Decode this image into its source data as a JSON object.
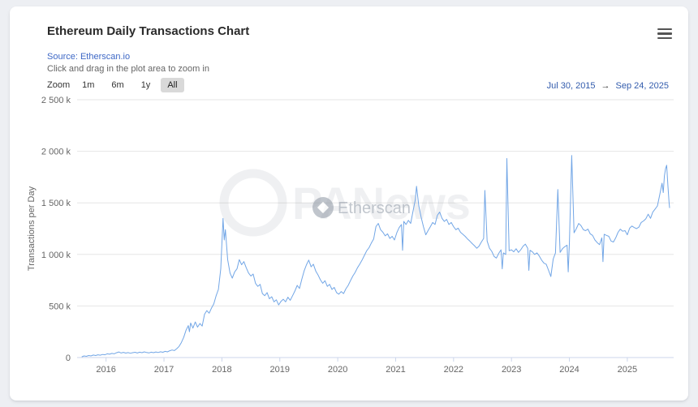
{
  "page": {
    "background": "#edeff3"
  },
  "header": {
    "title": "Ethereum Daily Transactions Chart",
    "source_label": "Source: Etherscan.io",
    "hint": "Click and drag in the plot area to zoom in"
  },
  "range_selector": {
    "zoom_label": "Zoom",
    "buttons": [
      {
        "label": "1m",
        "selected": false
      },
      {
        "label": "6m",
        "selected": false
      },
      {
        "label": "1y",
        "selected": false
      },
      {
        "label": "All",
        "selected": true
      }
    ],
    "from_date": "Jul 30, 2015",
    "to_date": "Sep 24, 2025",
    "arrow": "→",
    "selected_bg": "#d9d9d9",
    "date_color": "#335cad"
  },
  "watermarks": {
    "site": "PANews",
    "chart_brand": "Etherscan"
  },
  "chart_data": {
    "type": "line",
    "title": "Ethereum Daily Transactions Chart",
    "xlabel": "",
    "ylabel": "Transactions per Day",
    "series_name": "Ethereum Daily Transactions",
    "y_unit": "thousand transactions per day (k)",
    "line_color": "#72a6e6",
    "grid": true,
    "grid_color": "#e6e6e6",
    "axis_line_color": "#ccd6eb",
    "legend": false,
    "xlim": [
      2015.5,
      2025.8
    ],
    "ylim": [
      0,
      2500
    ],
    "y_ticks": [
      {
        "value": 0,
        "label": "0"
      },
      {
        "value": 500,
        "label": "500 k"
      },
      {
        "value": 1000,
        "label": "1 000 k"
      },
      {
        "value": 1500,
        "label": "1 500 k"
      },
      {
        "value": 2000,
        "label": "2 000 k"
      },
      {
        "value": 2500,
        "label": "2 500 k"
      }
    ],
    "x_ticks": [
      {
        "value": 2016,
        "label": "2016"
      },
      {
        "value": 2017,
        "label": "2017"
      },
      {
        "value": 2018,
        "label": "2018"
      },
      {
        "value": 2019,
        "label": "2019"
      },
      {
        "value": 2020,
        "label": "2020"
      },
      {
        "value": 2021,
        "label": "2021"
      },
      {
        "value": 2022,
        "label": "2022"
      },
      {
        "value": 2023,
        "label": "2023"
      },
      {
        "value": 2024,
        "label": "2024"
      },
      {
        "value": 2025,
        "label": "2025"
      }
    ],
    "points": [
      [
        2015.58,
        7
      ],
      [
        2015.62,
        16
      ],
      [
        2015.66,
        12
      ],
      [
        2015.7,
        20
      ],
      [
        2015.74,
        16
      ],
      [
        2015.78,
        24
      ],
      [
        2015.82,
        20
      ],
      [
        2015.86,
        27
      ],
      [
        2015.9,
        23
      ],
      [
        2015.94,
        30
      ],
      [
        2015.98,
        27
      ],
      [
        2016.02,
        36
      ],
      [
        2016.06,
        32
      ],
      [
        2016.1,
        40
      ],
      [
        2016.14,
        36
      ],
      [
        2016.18,
        46
      ],
      [
        2016.22,
        54
      ],
      [
        2016.26,
        44
      ],
      [
        2016.3,
        50
      ],
      [
        2016.34,
        43
      ],
      [
        2016.38,
        48
      ],
      [
        2016.42,
        42
      ],
      [
        2016.46,
        47
      ],
      [
        2016.5,
        51
      ],
      [
        2016.54,
        44
      ],
      [
        2016.58,
        52
      ],
      [
        2016.62,
        47
      ],
      [
        2016.66,
        55
      ],
      [
        2016.7,
        49
      ],
      [
        2016.74,
        45
      ],
      [
        2016.78,
        52
      ],
      [
        2016.82,
        47
      ],
      [
        2016.86,
        54
      ],
      [
        2016.9,
        49
      ],
      [
        2016.94,
        56
      ],
      [
        2016.98,
        51
      ],
      [
        2017.02,
        60
      ],
      [
        2017.06,
        55
      ],
      [
        2017.1,
        66
      ],
      [
        2017.14,
        73
      ],
      [
        2017.18,
        68
      ],
      [
        2017.22,
        86
      ],
      [
        2017.26,
        108
      ],
      [
        2017.3,
        145
      ],
      [
        2017.34,
        195
      ],
      [
        2017.38,
        265
      ],
      [
        2017.42,
        310
      ],
      [
        2017.44,
        250
      ],
      [
        2017.46,
        335
      ],
      [
        2017.5,
        285
      ],
      [
        2017.54,
        345
      ],
      [
        2017.58,
        295
      ],
      [
        2017.62,
        330
      ],
      [
        2017.66,
        305
      ],
      [
        2017.7,
        420
      ],
      [
        2017.74,
        455
      ],
      [
        2017.78,
        430
      ],
      [
        2017.82,
        480
      ],
      [
        2017.86,
        520
      ],
      [
        2017.9,
        600
      ],
      [
        2017.94,
        660
      ],
      [
        2017.98,
        860
      ],
      [
        2018.02,
        1349
      ],
      [
        2018.04,
        1140
      ],
      [
        2018.06,
        1240
      ],
      [
        2018.1,
        950
      ],
      [
        2018.14,
        820
      ],
      [
        2018.18,
        770
      ],
      [
        2018.22,
        830
      ],
      [
        2018.26,
        860
      ],
      [
        2018.3,
        950
      ],
      [
        2018.34,
        900
      ],
      [
        2018.38,
        930
      ],
      [
        2018.42,
        870
      ],
      [
        2018.46,
        820
      ],
      [
        2018.5,
        790
      ],
      [
        2018.54,
        810
      ],
      [
        2018.58,
        720
      ],
      [
        2018.62,
        690
      ],
      [
        2018.66,
        710
      ],
      [
        2018.7,
        620
      ],
      [
        2018.74,
        600
      ],
      [
        2018.78,
        630
      ],
      [
        2018.82,
        570
      ],
      [
        2018.86,
        590
      ],
      [
        2018.9,
        540
      ],
      [
        2018.94,
        560
      ],
      [
        2018.98,
        510
      ],
      [
        2019.02,
        545
      ],
      [
        2019.06,
        565
      ],
      [
        2019.1,
        540
      ],
      [
        2019.14,
        585
      ],
      [
        2019.18,
        555
      ],
      [
        2019.22,
        600
      ],
      [
        2019.26,
        645
      ],
      [
        2019.3,
        700
      ],
      [
        2019.34,
        670
      ],
      [
        2019.38,
        760
      ],
      [
        2019.42,
        840
      ],
      [
        2019.46,
        900
      ],
      [
        2019.5,
        945
      ],
      [
        2019.54,
        880
      ],
      [
        2019.58,
        905
      ],
      [
        2019.62,
        840
      ],
      [
        2019.66,
        800
      ],
      [
        2019.7,
        755
      ],
      [
        2019.74,
        720
      ],
      [
        2019.78,
        745
      ],
      [
        2019.82,
        690
      ],
      [
        2019.86,
        710
      ],
      [
        2019.9,
        660
      ],
      [
        2019.94,
        680
      ],
      [
        2019.98,
        630
      ],
      [
        2020.02,
        615
      ],
      [
        2020.06,
        640
      ],
      [
        2020.1,
        620
      ],
      [
        2020.14,
        665
      ],
      [
        2020.18,
        700
      ],
      [
        2020.22,
        745
      ],
      [
        2020.26,
        790
      ],
      [
        2020.3,
        825
      ],
      [
        2020.34,
        870
      ],
      [
        2020.38,
        905
      ],
      [
        2020.42,
        945
      ],
      [
        2020.46,
        990
      ],
      [
        2020.5,
        1035
      ],
      [
        2020.54,
        1065
      ],
      [
        2020.58,
        1110
      ],
      [
        2020.62,
        1150
      ],
      [
        2020.66,
        1270
      ],
      [
        2020.7,
        1300
      ],
      [
        2020.74,
        1240
      ],
      [
        2020.78,
        1215
      ],
      [
        2020.82,
        1180
      ],
      [
        2020.86,
        1200
      ],
      [
        2020.9,
        1155
      ],
      [
        2020.94,
        1175
      ],
      [
        2020.98,
        1140
      ],
      [
        2021.02,
        1210
      ],
      [
        2021.06,
        1260
      ],
      [
        2021.1,
        1290
      ],
      [
        2021.12,
        1040
      ],
      [
        2021.14,
        1320
      ],
      [
        2021.18,
        1290
      ],
      [
        2021.22,
        1330
      ],
      [
        2021.26,
        1300
      ],
      [
        2021.3,
        1420
      ],
      [
        2021.34,
        1530
      ],
      [
        2021.36,
        1660
      ],
      [
        2021.4,
        1470
      ],
      [
        2021.44,
        1360
      ],
      [
        2021.48,
        1270
      ],
      [
        2021.52,
        1190
      ],
      [
        2021.56,
        1230
      ],
      [
        2021.6,
        1270
      ],
      [
        2021.64,
        1310
      ],
      [
        2021.68,
        1290
      ],
      [
        2021.72,
        1380
      ],
      [
        2021.76,
        1410
      ],
      [
        2021.8,
        1350
      ],
      [
        2021.84,
        1320
      ],
      [
        2021.88,
        1340
      ],
      [
        2021.92,
        1290
      ],
      [
        2021.96,
        1310
      ],
      [
        2022.0,
        1270
      ],
      [
        2022.04,
        1240
      ],
      [
        2022.08,
        1255
      ],
      [
        2022.12,
        1215
      ],
      [
        2022.16,
        1195
      ],
      [
        2022.2,
        1175
      ],
      [
        2022.24,
        1150
      ],
      [
        2022.28,
        1130
      ],
      [
        2022.32,
        1105
      ],
      [
        2022.36,
        1085
      ],
      [
        2022.4,
        1060
      ],
      [
        2022.44,
        1080
      ],
      [
        2022.48,
        1120
      ],
      [
        2022.52,
        1155
      ],
      [
        2022.54,
        1620
      ],
      [
        2022.58,
        1130
      ],
      [
        2022.62,
        1060
      ],
      [
        2022.66,
        1030
      ],
      [
        2022.7,
        980
      ],
      [
        2022.74,
        965
      ],
      [
        2022.78,
        1010
      ],
      [
        2022.82,
        1045
      ],
      [
        2022.84,
        860
      ],
      [
        2022.86,
        1015
      ],
      [
        2022.9,
        1000
      ],
      [
        2022.92,
        1930
      ],
      [
        2022.96,
        1035
      ],
      [
        2023.0,
        1045
      ],
      [
        2023.04,
        1025
      ],
      [
        2023.08,
        1055
      ],
      [
        2023.12,
        1020
      ],
      [
        2023.16,
        1045
      ],
      [
        2023.2,
        1080
      ],
      [
        2023.24,
        1100
      ],
      [
        2023.28,
        1060
      ],
      [
        2023.3,
        845
      ],
      [
        2023.32,
        1040
      ],
      [
        2023.36,
        1025
      ],
      [
        2023.4,
        1000
      ],
      [
        2023.44,
        1015
      ],
      [
        2023.48,
        985
      ],
      [
        2023.52,
        945
      ],
      [
        2023.56,
        915
      ],
      [
        2023.6,
        905
      ],
      [
        2023.64,
        845
      ],
      [
        2023.68,
        785
      ],
      [
        2023.72,
        955
      ],
      [
        2023.76,
        1015
      ],
      [
        2023.8,
        1630
      ],
      [
        2023.84,
        1020
      ],
      [
        2023.88,
        1055
      ],
      [
        2023.92,
        1075
      ],
      [
        2023.96,
        1090
      ],
      [
        2023.98,
        830
      ],
      [
        2024.0,
        1120
      ],
      [
        2024.04,
        1960
      ],
      [
        2024.08,
        1210
      ],
      [
        2024.12,
        1250
      ],
      [
        2024.16,
        1300
      ],
      [
        2024.2,
        1280
      ],
      [
        2024.24,
        1240
      ],
      [
        2024.28,
        1230
      ],
      [
        2024.32,
        1245
      ],
      [
        2024.36,
        1200
      ],
      [
        2024.4,
        1185
      ],
      [
        2024.44,
        1140
      ],
      [
        2024.48,
        1115
      ],
      [
        2024.52,
        1095
      ],
      [
        2024.56,
        1160
      ],
      [
        2024.58,
        930
      ],
      [
        2024.6,
        1195
      ],
      [
        2024.64,
        1185
      ],
      [
        2024.68,
        1175
      ],
      [
        2024.72,
        1130
      ],
      [
        2024.76,
        1120
      ],
      [
        2024.8,
        1160
      ],
      [
        2024.84,
        1215
      ],
      [
        2024.88,
        1245
      ],
      [
        2024.92,
        1225
      ],
      [
        2024.96,
        1230
      ],
      [
        2025.0,
        1190
      ],
      [
        2025.04,
        1255
      ],
      [
        2025.08,
        1275
      ],
      [
        2025.12,
        1260
      ],
      [
        2025.16,
        1250
      ],
      [
        2025.2,
        1265
      ],
      [
        2025.24,
        1310
      ],
      [
        2025.28,
        1325
      ],
      [
        2025.32,
        1345
      ],
      [
        2025.36,
        1390
      ],
      [
        2025.4,
        1350
      ],
      [
        2025.44,
        1410
      ],
      [
        2025.48,
        1440
      ],
      [
        2025.52,
        1470
      ],
      [
        2025.56,
        1580
      ],
      [
        2025.6,
        1690
      ],
      [
        2025.62,
        1600
      ],
      [
        2025.64,
        1760
      ],
      [
        2025.66,
        1830
      ],
      [
        2025.68,
        1865
      ],
      [
        2025.7,
        1670
      ],
      [
        2025.72,
        1510
      ],
      [
        2025.73,
        1450
      ]
    ]
  }
}
